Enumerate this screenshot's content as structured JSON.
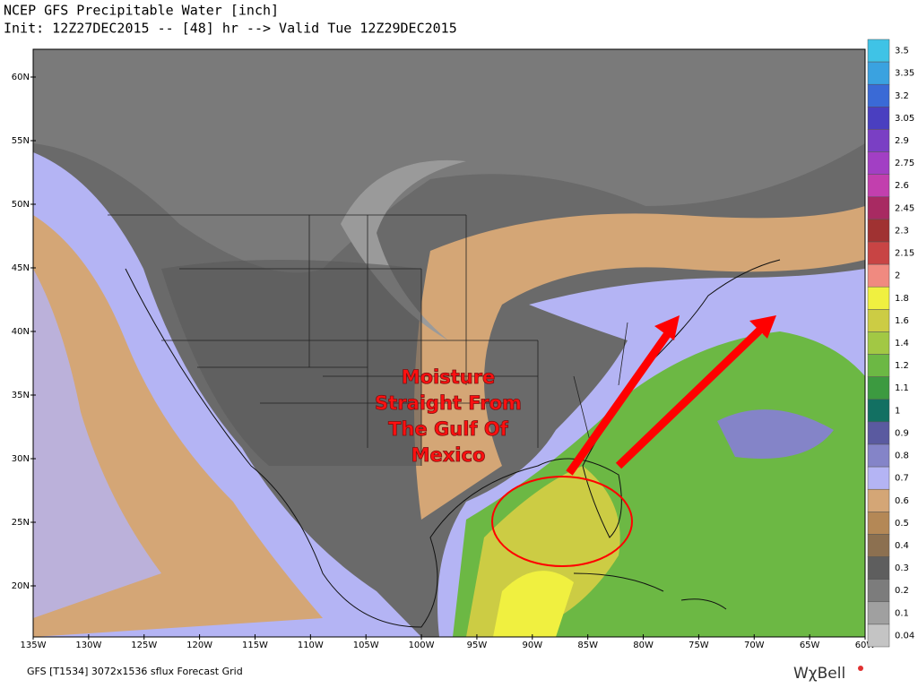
{
  "header": {
    "title": "NCEP GFS Precipitable Water [inch]",
    "subtitle": "Init: 12Z27DEC2015 -- [48] hr --> Valid Tue 12Z29DEC2015"
  },
  "latitude_labels": [
    "60N",
    "55N",
    "50N",
    "45N",
    "40N",
    "35N",
    "30N",
    "25N",
    "20N"
  ],
  "longitude_labels": [
    "135W",
    "130W",
    "125W",
    "120W",
    "115W",
    "110W",
    "105W",
    "100W",
    "95W",
    "90W",
    "85W",
    "80W",
    "75W",
    "70W",
    "65W",
    "60W"
  ],
  "colorbar": [
    {
      "label": "3.5",
      "color": "#3fc3e6"
    },
    {
      "label": "3.35",
      "color": "#3aa2e0"
    },
    {
      "label": "3.2",
      "color": "#3a6ad6"
    },
    {
      "label": "3.05",
      "color": "#4a3fc0"
    },
    {
      "label": "2.9",
      "color": "#7a3fc4"
    },
    {
      "label": "2.75",
      "color": "#a23fc4"
    },
    {
      "label": "2.6",
      "color": "#c23fae"
    },
    {
      "label": "2.45",
      "color": "#a82a62"
    },
    {
      "label": "2.3",
      "color": "#a03232"
    },
    {
      "label": "2.15",
      "color": "#c84444"
    },
    {
      "label": "2",
      "color": "#f08a80"
    },
    {
      "label": "1.8",
      "color": "#f0f040"
    },
    {
      "label": "1.6",
      "color": "#cccc44"
    },
    {
      "label": "1.4",
      "color": "#a2c844"
    },
    {
      "label": "1.2",
      "color": "#6cb844"
    },
    {
      "label": "1.1",
      "color": "#3c9a40"
    },
    {
      "label": "1",
      "color": "#127062"
    },
    {
      "label": "0.9",
      "color": "#5a5aa0"
    },
    {
      "label": "0.8",
      "color": "#8484c8"
    },
    {
      "label": "0.7",
      "color": "#b4b4f4"
    },
    {
      "label": "0.6",
      "color": "#d4a676"
    },
    {
      "label": "0.5",
      "color": "#b48856"
    },
    {
      "label": "0.4",
      "color": "#8c7050"
    },
    {
      "label": "0.3",
      "color": "#5e5e5e"
    },
    {
      "label": "0.2",
      "color": "#7c7c7c"
    },
    {
      "label": "0.1",
      "color": "#a0a0a0"
    },
    {
      "label": "0.04",
      "color": "#c4c4c4"
    }
  ],
  "annotation": {
    "lines": [
      "Moisture",
      "Straight From",
      "The Gulf Of",
      "Mexico"
    ]
  },
  "footer": {
    "source": "GFS [T1534] 3072x1536 sflux Forecast Grid",
    "logo": "WχBell"
  }
}
